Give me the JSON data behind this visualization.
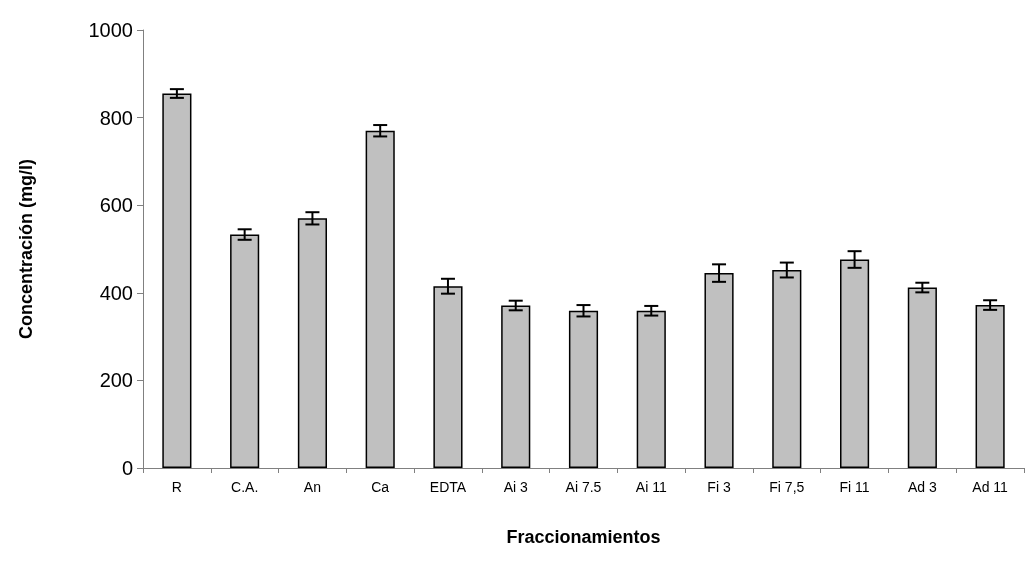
{
  "chart_data": {
    "type": "bar",
    "xlabel": "Fraccionamientos",
    "ylabel": "Concentración (mg/l)",
    "categories": [
      "R",
      "C.A.",
      "An",
      "Ca",
      "EDTA",
      "Ai 3",
      "Ai 7.5",
      "Ai 11",
      "Fi 3",
      "Fi 7,5",
      "Fi 11",
      "Ad 3",
      "Ad 11"
    ],
    "values": [
      855,
      533,
      570,
      770,
      415,
      371,
      359,
      359,
      445,
      452,
      476,
      412,
      372
    ],
    "errors": [
      10,
      12,
      14,
      13,
      17,
      11,
      13,
      11,
      20,
      17,
      19,
      11,
      11
    ],
    "color": "#c0c0c0",
    "ylim": [
      0,
      1000
    ],
    "yticks": [
      0,
      200,
      400,
      600,
      800,
      1000
    ],
    "grid": false
  }
}
